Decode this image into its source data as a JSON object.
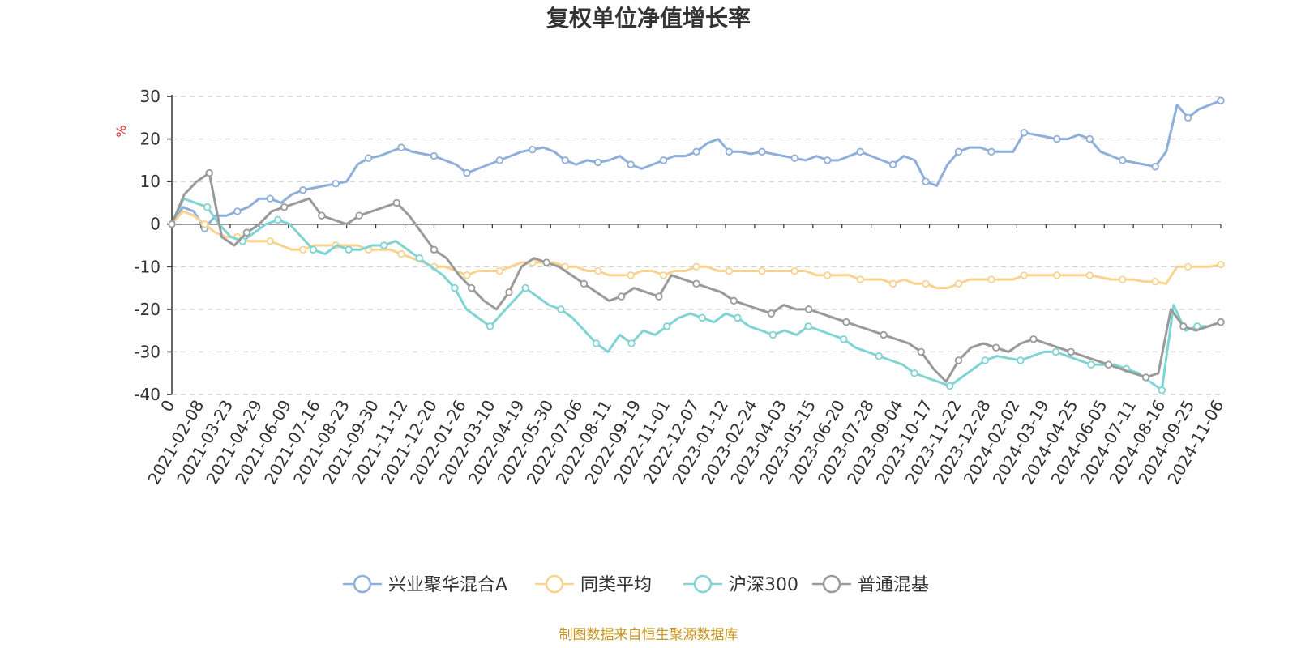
{
  "chart_data": {
    "type": "line",
    "title": "复权单位净值增长率",
    "ylabel": "%",
    "ylim": [
      -40,
      30
    ],
    "yticks": [
      30,
      20,
      10,
      0,
      -10,
      -20,
      -30,
      -40
    ],
    "grid": true,
    "legend_position": "bottom",
    "x_ticks": [
      "0",
      "2021-02-08",
      "2021-03-23",
      "2021-04-29",
      "2021-06-09",
      "2021-07-16",
      "2021-08-23",
      "2021-09-30",
      "2021-11-12",
      "2021-12-20",
      "2022-01-26",
      "2022-03-10",
      "2022-04-19",
      "2022-05-30",
      "2022-07-06",
      "2022-08-11",
      "2022-09-19",
      "2022-11-01",
      "2022-12-07",
      "2023-01-12",
      "2023-02-24",
      "2023-04-03",
      "2023-05-15",
      "2023-06-20",
      "2023-07-28",
      "2023-09-04",
      "2023-10-17",
      "2023-11-22",
      "2023-12-28",
      "2024-02-02",
      "2024-03-19",
      "2024-04-25",
      "2024-06-05",
      "2024-07-11",
      "2024-08-16",
      "2024-09-25",
      "2024-11-06"
    ],
    "series": [
      {
        "name": "兴业聚华混合A",
        "color": "#8eaedb",
        "values": [
          0,
          4,
          3,
          -1,
          2,
          2,
          3,
          4,
          6,
          6,
          5,
          7,
          8,
          8.5,
          9,
          9.5,
          10,
          14,
          15.5,
          16,
          17,
          18,
          17,
          16.5,
          16,
          15,
          14,
          12,
          13,
          14,
          15,
          16,
          17,
          17.5,
          18,
          17,
          15,
          14,
          15,
          14.5,
          15,
          16,
          14,
          13,
          14,
          15,
          16,
          16,
          17,
          19,
          20,
          17,
          17,
          16.5,
          17,
          16.5,
          16,
          15.5,
          15,
          16,
          15,
          15,
          16,
          17,
          16,
          15,
          14,
          16,
          15,
          10,
          9,
          14,
          17,
          18,
          18,
          17,
          17,
          17,
          21.5,
          21,
          20.5,
          20,
          20,
          21,
          20,
          17,
          16,
          15,
          14.5,
          14,
          13.5,
          17,
          28,
          25,
          27,
          28,
          29
        ]
      },
      {
        "name": "同类平均",
        "color": "#f9d38e",
        "values": [
          0,
          3,
          2,
          0,
          -2,
          -3,
          -3,
          -4,
          -4,
          -4,
          -5,
          -6,
          -6,
          -5,
          -5,
          -5,
          -5,
          -5,
          -6,
          -6,
          -6,
          -7,
          -8,
          -9,
          -10,
          -10,
          -11,
          -12,
          -11,
          -11,
          -11,
          -10,
          -9,
          -9,
          -9,
          -9,
          -10,
          -10,
          -11,
          -11,
          -12,
          -12,
          -12,
          -11,
          -11,
          -12,
          -11,
          -11,
          -10,
          -10,
          -11,
          -11,
          -11,
          -11,
          -11,
          -11,
          -11,
          -11,
          -11,
          -12,
          -12,
          -12,
          -12,
          -13,
          -13,
          -13,
          -14,
          -13,
          -14,
          -14,
          -15,
          -15,
          -14,
          -13,
          -13,
          -13,
          -13,
          -13,
          -12,
          -12,
          -12,
          -12,
          -12,
          -12,
          -12,
          -12.5,
          -13,
          -13,
          -13,
          -13.5,
          -13.5,
          -14,
          -10,
          -10,
          -10,
          -10,
          -9.5
        ]
      },
      {
        "name": "沪深300",
        "color": "#7fd4d4",
        "values": [
          0,
          6,
          5,
          4,
          0,
          -3,
          -4,
          -2,
          0,
          1,
          0,
          -3,
          -6,
          -7,
          -5,
          -6,
          -6,
          -5,
          -5,
          -4,
          -6,
          -8,
          -10,
          -12,
          -15,
          -20,
          -22,
          -24,
          -21,
          -18,
          -15,
          -17,
          -19,
          -20,
          -22,
          -25,
          -28,
          -30,
          -26,
          -28,
          -25,
          -26,
          -24,
          -22,
          -21,
          -22,
          -23,
          -21,
          -22,
          -24,
          -25,
          -26,
          -25,
          -26,
          -24,
          -25,
          -26,
          -27,
          -29,
          -30,
          -31,
          -32,
          -33,
          -35,
          -36,
          -37,
          -38,
          -36,
          -34,
          -32,
          -31,
          -31.5,
          -32,
          -31,
          -30,
          -30,
          -31,
          -32,
          -33,
          -33,
          -33,
          -34,
          -35,
          -37,
          -39,
          -19,
          -25,
          -24,
          -24,
          -23
        ]
      },
      {
        "name": "普通混基",
        "color": "#9a9a9a",
        "values": [
          0,
          7,
          10,
          12,
          -3,
          -5,
          -2,
          0,
          3,
          4,
          5,
          6,
          2,
          1,
          0,
          2,
          3,
          4,
          5,
          2,
          -2,
          -6,
          -8,
          -12,
          -15,
          -18,
          -20,
          -16,
          -10,
          -8,
          -9,
          -10,
          -12,
          -14,
          -16,
          -18,
          -17,
          -15,
          -16,
          -17,
          -12,
          -13,
          -14,
          -15,
          -16,
          -18,
          -19,
          -20,
          -21,
          -19,
          -20,
          -20,
          -21,
          -22,
          -23,
          -24,
          -25,
          -26,
          -27,
          -28,
          -30,
          -34,
          -37,
          -32,
          -29,
          -28,
          -29,
          -30,
          -28,
          -27,
          -28,
          -29,
          -30,
          -31,
          -32,
          -33,
          -34,
          -35,
          -36,
          -35,
          -20,
          -24,
          -25,
          -24,
          -23
        ]
      }
    ]
  },
  "source_text": "制图数据来自恒生聚源数据库"
}
